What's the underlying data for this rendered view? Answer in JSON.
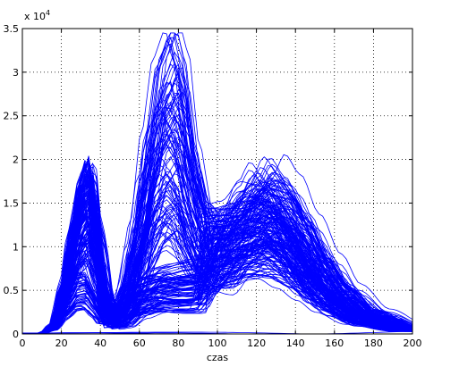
{
  "chart_data": {
    "type": "line",
    "title": "",
    "xlabel": "czas",
    "ylabel": "",
    "exponent_label": {
      "base": "x 10",
      "power": "4"
    },
    "xlim": [
      0,
      200
    ],
    "ylim": [
      0,
      3.5
    ],
    "y_scale_factor": 10000,
    "xticks": [
      0,
      20,
      40,
      60,
      80,
      100,
      120,
      140,
      160,
      180,
      200
    ],
    "xtick_labels": [
      "0",
      "20",
      "40",
      "60",
      "80",
      "100",
      "120",
      "140",
      "160",
      "180",
      "200"
    ],
    "yticks": [
      0,
      0.5,
      1,
      1.5,
      2,
      2.5,
      3,
      3.5
    ],
    "ytick_labels": [
      "0",
      "0.5",
      "1",
      "1.5",
      "2",
      "2.5",
      "3",
      "3.5"
    ],
    "grid": true,
    "grid_style": "dotted",
    "line_color": "#0000ff",
    "series_count": 200,
    "series_shape": "three-peak curves: first peak near x=30-36, second near x=70-80, third broad peak near x=110-140",
    "series": [
      {
        "values": [
          [
            0,
            0
          ],
          [
            10,
            0.01
          ],
          [
            15,
            0.1
          ],
          [
            20,
            0.5
          ],
          [
            25,
            1.1
          ],
          [
            30,
            1.6
          ],
          [
            33,
            1.8
          ],
          [
            37,
            1.2
          ],
          [
            42,
            0.4
          ],
          [
            46,
            0.2
          ],
          [
            52,
            0.4
          ],
          [
            58,
            1.0
          ],
          [
            64,
            1.8
          ],
          [
            70,
            2.4
          ],
          [
            75,
            2.6
          ],
          [
            80,
            2.4
          ],
          [
            86,
            1.8
          ],
          [
            92,
            1.4
          ],
          [
            100,
            1.3
          ],
          [
            110,
            1.3
          ],
          [
            120,
            1.5
          ],
          [
            128,
            1.6
          ],
          [
            136,
            1.4
          ],
          [
            145,
            1.0
          ],
          [
            155,
            0.6
          ],
          [
            165,
            0.35
          ],
          [
            180,
            0.15
          ],
          [
            200,
            0.05
          ]
        ]
      },
      {
        "values": [
          [
            0,
            0
          ],
          [
            10,
            0.01
          ],
          [
            15,
            0.08
          ],
          [
            20,
            0.45
          ],
          [
            25,
            1.0
          ],
          [
            30,
            1.55
          ],
          [
            34,
            1.75
          ],
          [
            38,
            1.3
          ],
          [
            43,
            0.45
          ],
          [
            47,
            0.2
          ],
          [
            53,
            0.45
          ],
          [
            60,
            1.2
          ],
          [
            66,
            2.2
          ],
          [
            72,
            3.0
          ],
          [
            78,
            3.3
          ],
          [
            82,
            3.0
          ],
          [
            88,
            2.0
          ],
          [
            94,
            1.4
          ],
          [
            100,
            1.3
          ],
          [
            110,
            1.35
          ],
          [
            120,
            1.55
          ],
          [
            130,
            1.5
          ],
          [
            140,
            1.2
          ],
          [
            150,
            0.8
          ],
          [
            160,
            0.5
          ],
          [
            175,
            0.2
          ],
          [
            200,
            0.05
          ]
        ]
      },
      {
        "values": [
          [
            0,
            0
          ],
          [
            10,
            0.01
          ],
          [
            16,
            0.1
          ],
          [
            22,
            0.55
          ],
          [
            27,
            1.2
          ],
          [
            32,
            1.7
          ],
          [
            36,
            1.8
          ],
          [
            40,
            1.1
          ],
          [
            45,
            0.35
          ],
          [
            50,
            0.3
          ],
          [
            56,
            0.55
          ],
          [
            62,
            0.6
          ],
          [
            70,
            0.65
          ],
          [
            80,
            0.6
          ],
          [
            90,
            0.6
          ],
          [
            100,
            0.8
          ],
          [
            110,
            1.2
          ],
          [
            120,
            1.6
          ],
          [
            126,
            1.8
          ],
          [
            134,
            1.6
          ],
          [
            144,
            1.2
          ],
          [
            155,
            0.8
          ],
          [
            165,
            0.5
          ],
          [
            180,
            0.25
          ],
          [
            200,
            0.08
          ]
        ]
      },
      {
        "values": [
          [
            0,
            0
          ],
          [
            10,
            0.01
          ],
          [
            17,
            0.1
          ],
          [
            23,
            0.4
          ],
          [
            28,
            0.6
          ],
          [
            32,
            0.62
          ],
          [
            36,
            0.45
          ],
          [
            40,
            0.25
          ],
          [
            46,
            0.15
          ],
          [
            52,
            0.2
          ],
          [
            60,
            0.5
          ],
          [
            70,
            0.7
          ],
          [
            80,
            0.75
          ],
          [
            90,
            0.8
          ],
          [
            100,
            0.95
          ],
          [
            110,
            1.1
          ],
          [
            120,
            1.2
          ],
          [
            130,
            1.15
          ],
          [
            140,
            0.95
          ],
          [
            150,
            0.7
          ],
          [
            160,
            0.45
          ],
          [
            175,
            0.2
          ],
          [
            200,
            0.05
          ]
        ]
      }
    ]
  }
}
